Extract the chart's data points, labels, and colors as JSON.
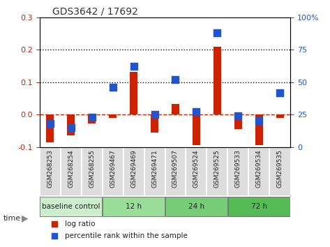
{
  "title": "GDS3642 / 17692",
  "samples": [
    "GSM268253",
    "GSM268254",
    "GSM268255",
    "GSM269467",
    "GSM269469",
    "GSM269471",
    "GSM269507",
    "GSM269524",
    "GSM269525",
    "GSM269533",
    "GSM269534",
    "GSM269535"
  ],
  "log_ratio": [
    -0.085,
    -0.065,
    -0.028,
    -0.01,
    0.132,
    -0.055,
    0.032,
    -0.095,
    0.208,
    -0.045,
    -0.095,
    -0.01
  ],
  "percentile_rank": [
    18,
    15,
    23,
    46,
    62,
    25,
    52,
    27,
    88,
    24,
    20,
    42
  ],
  "bar_color": "#cc2200",
  "dot_color": "#2255cc",
  "ylim_left": [
    -0.1,
    0.3
  ],
  "ylim_right": [
    0,
    100
  ],
  "yticks_left": [
    -0.1,
    0.0,
    0.1,
    0.2,
    0.3
  ],
  "yticks_right": [
    0,
    25,
    50,
    75,
    100
  ],
  "right_tick_labels": [
    "0",
    "25",
    "50",
    "75",
    "100%"
  ],
  "groups": [
    {
      "label": "baseline control",
      "start": 0,
      "end": 3,
      "color": "#cceecc"
    },
    {
      "label": "12 h",
      "start": 3,
      "end": 6,
      "color": "#99dd99"
    },
    {
      "label": "24 h",
      "start": 6,
      "end": 9,
      "color": "#77cc77"
    },
    {
      "label": "72 h",
      "start": 9,
      "end": 12,
      "color": "#55bb55"
    }
  ],
  "time_label": "time",
  "legend_items": [
    {
      "color": "#cc2200",
      "label": "log ratio"
    },
    {
      "color": "#2255cc",
      "label": "percentile rank within the sample"
    }
  ],
  "bg_color": "#ffffff",
  "plot_bg": "#ffffff",
  "zero_line_color": "#cc2200",
  "dotted_line_color": "#000000"
}
